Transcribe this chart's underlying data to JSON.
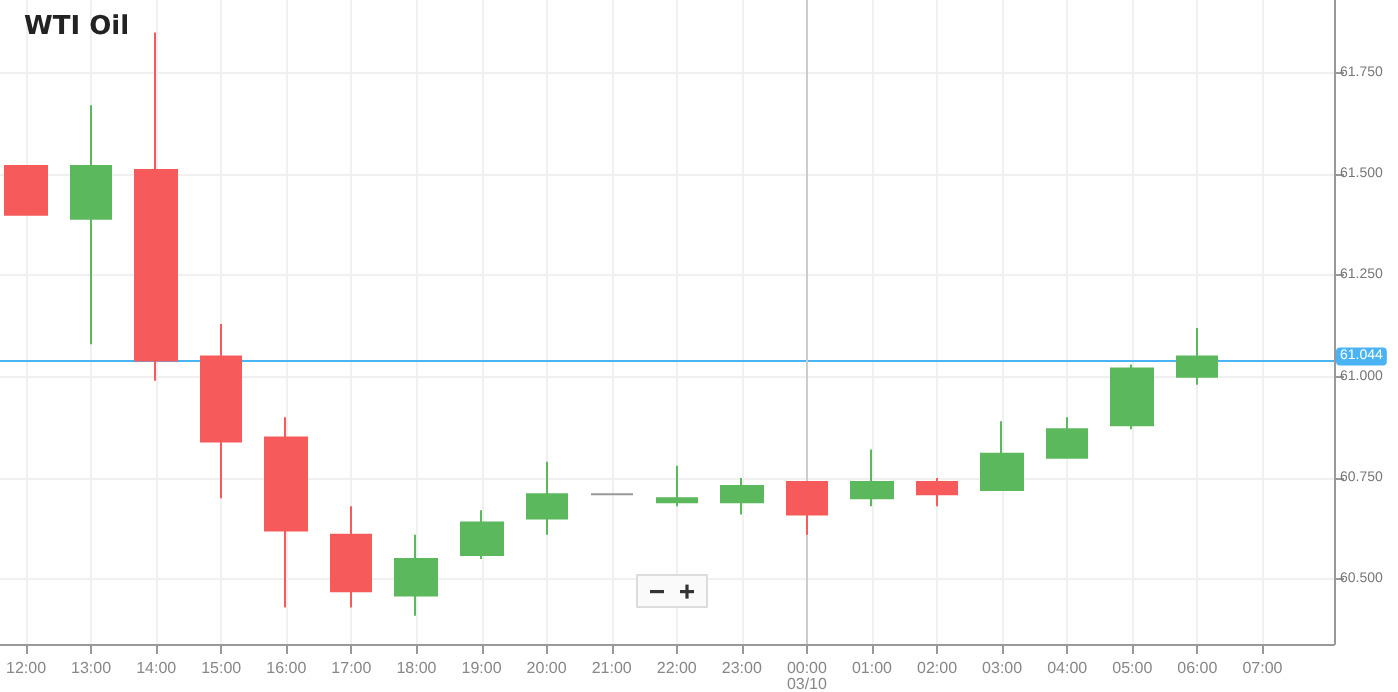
{
  "chart_data": {
    "type": "candlestick",
    "title": "WTI Oil",
    "x": [
      "--03-09T12:00",
      "--03-09T13:00",
      "--03-09T14:00",
      "--03-09T15:00",
      "--03-09T16:00",
      "--03-09T17:00",
      "--03-09T18:00",
      "--03-09T19:00",
      "--03-09T20:00",
      "--03-09T21:00",
      "--03-09T22:00",
      "--03-09T23:00",
      "--03-10T00:00",
      "--03-10T01:00",
      "--03-10T02:00",
      "--03-10T03:00",
      "--03-10T04:00",
      "--03-10T05:00",
      "--03-10T06:00"
    ],
    "ohlc": [
      [
        61.52,
        61.52,
        61.4,
        61.4
      ],
      [
        61.39,
        61.67,
        61.08,
        61.52
      ],
      [
        61.51,
        61.85,
        60.99,
        61.04
      ],
      [
        61.05,
        61.13,
        60.7,
        60.84
      ],
      [
        60.85,
        60.9,
        60.43,
        60.62
      ],
      [
        60.61,
        60.68,
        60.43,
        60.47
      ],
      [
        60.46,
        60.61,
        60.41,
        60.55
      ],
      [
        60.56,
        60.67,
        60.55,
        60.64
      ],
      [
        60.65,
        60.79,
        60.61,
        60.71
      ],
      [
        60.71,
        60.71,
        60.71,
        60.71
      ],
      [
        60.69,
        60.78,
        60.68,
        60.7
      ],
      [
        60.69,
        60.75,
        60.66,
        60.73
      ],
      [
        60.74,
        60.74,
        60.61,
        60.66
      ],
      [
        60.7,
        60.82,
        60.68,
        60.74
      ],
      [
        60.74,
        60.75,
        60.68,
        60.71
      ],
      [
        60.72,
        60.89,
        60.72,
        60.81
      ],
      [
        60.8,
        60.9,
        60.8,
        60.87
      ],
      [
        60.88,
        61.03,
        60.87,
        61.02
      ],
      [
        61.0,
        61.12,
        60.98,
        61.05
      ]
    ],
    "colors": [
      "#f75a5a",
      "#5cb85c",
      "#f75a5a",
      "#f75a5a",
      "#f75a5a",
      "#f75a5a",
      "#5cb85c",
      "#5cb85c",
      "#5cb85c",
      "#999999",
      "#5cb85c",
      "#5cb85c",
      "#f75a5a",
      "#5cb85c",
      "#f75a5a",
      "#5cb85c",
      "#5cb85c",
      "#5cb85c",
      "#5cb85c"
    ],
    "xlim": [
      "--03-09T11:36",
      "--03-10T08:06"
    ],
    "xticks": [
      {
        "value": "--03-09T12:00",
        "label": "12:00"
      },
      {
        "value": "--03-09T13:00",
        "label": "13:00"
      },
      {
        "value": "--03-09T14:00",
        "label": "14:00"
      },
      {
        "value": "--03-09T15:00",
        "label": "15:00"
      },
      {
        "value": "--03-09T16:00",
        "label": "16:00"
      },
      {
        "value": "--03-09T17:00",
        "label": "17:00"
      },
      {
        "value": "--03-09T18:00",
        "label": "18:00"
      },
      {
        "value": "--03-09T19:00",
        "label": "19:00"
      },
      {
        "value": "--03-09T20:00",
        "label": "20:00"
      },
      {
        "value": "--03-09T21:00",
        "label": "21:00"
      },
      {
        "value": "--03-09T22:00",
        "label": "22:00"
      },
      {
        "value": "--03-09T23:00",
        "label": "23:00"
      },
      {
        "value": "--03-10T00:00",
        "label": "00:00"
      },
      {
        "value": "--03-10T01:00",
        "label": "01:00"
      },
      {
        "value": "--03-10T02:00",
        "label": "02:00"
      },
      {
        "value": "--03-10T03:00",
        "label": "03:00"
      },
      {
        "value": "--03-10T04:00",
        "label": "04:00"
      },
      {
        "value": "--03-10T05:00",
        "label": "05:00"
      },
      {
        "value": "--03-10T06:00",
        "label": "06:00"
      },
      {
        "value": "--03-10T07:00",
        "label": "07:00"
      }
    ],
    "ylim": [
      60.34,
      61.93
    ],
    "yticks": [
      {
        "value": 60.5,
        "label": "60.500"
      },
      {
        "value": 60.75,
        "label": "60.750"
      },
      {
        "value": 61,
        "label": "61.000"
      },
      {
        "value": 61.25,
        "label": "61.250"
      },
      {
        "value": 61.5,
        "label": "61.500"
      },
      {
        "value": 61.75,
        "label": "61.750"
      }
    ],
    "grid": true,
    "ref_lines": [
      {
        "axis": "y",
        "value": 61.044,
        "label": "61.044",
        "color": "#4ab3f4"
      },
      {
        "axis": "x",
        "value": "--03-10T00:00",
        "label": "03/10",
        "color": "#cccccc"
      }
    ]
  }
}
